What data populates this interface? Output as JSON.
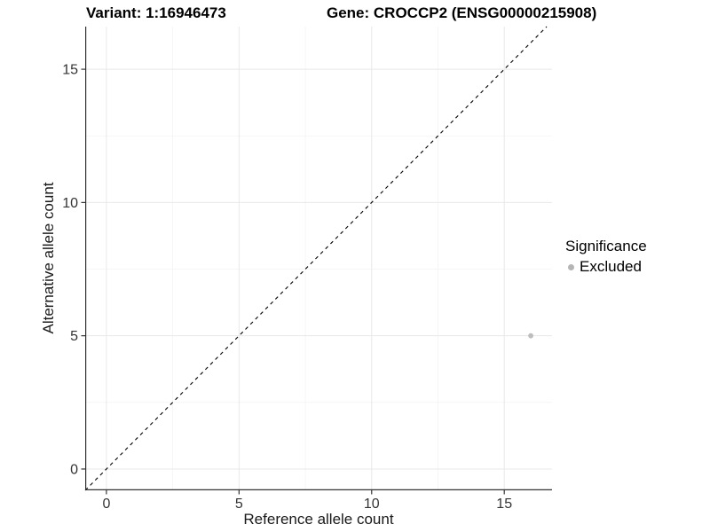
{
  "chart_data": {
    "type": "scatter",
    "title_left": "Variant: 1:16946473",
    "title_right": "Gene: CROCCP2 (ENSG00000215908)",
    "xlabel": "Reference allele count",
    "ylabel": "Alternative allele count",
    "xlim": [
      -0.8,
      16.8
    ],
    "ylim": [
      -0.8,
      16.6
    ],
    "x_major_ticks": [
      0,
      5,
      10,
      15
    ],
    "y_major_ticks": [
      0,
      5,
      10,
      15
    ],
    "x_minor_ticks": [
      2.5,
      7.5,
      12.5
    ],
    "y_minor_ticks": [
      2.5,
      7.5,
      12.5
    ],
    "grid": true,
    "identity_line": {
      "slope": 1,
      "intercept": 0,
      "style": "dashed",
      "color": "#000000"
    },
    "series": [
      {
        "name": "Excluded",
        "color": "#bdbdbd",
        "points": [
          {
            "x": 16,
            "y": 5
          }
        ]
      }
    ],
    "legend": {
      "title": "Significance",
      "position": "right",
      "items": [
        {
          "label": "Excluded",
          "color": "#b5b5b5"
        }
      ]
    },
    "colors": {
      "background": "#ffffff",
      "grid_major": "#e8e8e8",
      "grid_minor": "#f3f3f3",
      "axis_line": "#333333",
      "tick_text": "#333333"
    }
  }
}
